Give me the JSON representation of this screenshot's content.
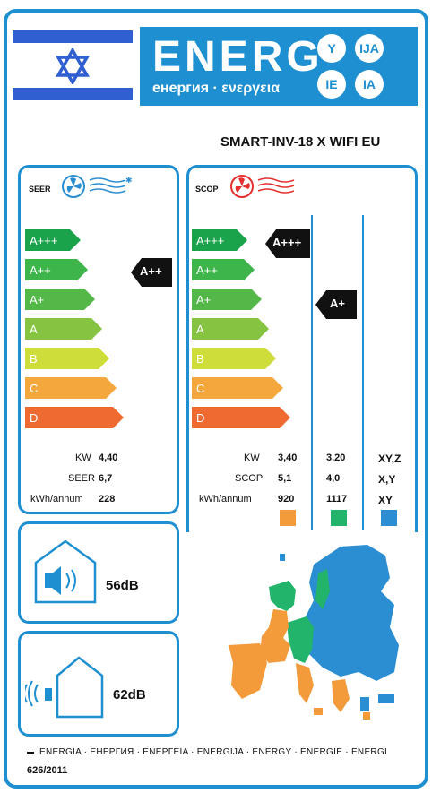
{
  "header": {
    "brand_word": "ENERG",
    "brand_subtitle": "енергия · ενεργεια",
    "suffixes": [
      "Y",
      "IJA",
      "IE",
      "IA"
    ]
  },
  "model": "SMART-INV-18 X WIFI EU",
  "colors": {
    "frame": "#1e8fd0",
    "class_a3": "#1aa34b",
    "class_a2": "#3db54a",
    "class_a1": "#53b848",
    "class_a": "#86c341",
    "class_b": "#cfdd3b",
    "class_c": "#f3a73c",
    "class_d": "#ee6a30",
    "zone_warmer": "#f39a3a",
    "zone_average": "#21b46a",
    "zone_colder": "#2b8ed2"
  },
  "cooling": {
    "title": "SEER",
    "icon": "fan-snowflake-icon",
    "classes": [
      "A+++",
      "A++",
      "A+",
      "A",
      "B",
      "C",
      "D"
    ],
    "rating": "A++",
    "rows": [
      {
        "label": "KW",
        "value": "4,40"
      },
      {
        "label": "SEER",
        "value": "6,7"
      },
      {
        "label": "kWh/annum",
        "value": "228"
      }
    ]
  },
  "heating": {
    "title": "SCOP",
    "icon": "fan-heat-icon",
    "classes": [
      "A+++",
      "A++",
      "A+",
      "A",
      "B",
      "C",
      "D"
    ],
    "rating_warmer": "A+++",
    "rating_average": "A+",
    "labels": [
      "KW",
      "SCOP",
      "kWh/annum"
    ],
    "warmer": [
      "3,40",
      "5,1",
      "920"
    ],
    "average": [
      "3,20",
      "4,0",
      "1117"
    ],
    "colder": [
      "XY,Z",
      "X,Y",
      "XY"
    ]
  },
  "noise": {
    "indoor": "56dB",
    "outdoor": "62dB"
  },
  "footer": {
    "languages": "ENERGIA · ЕНЕРГИЯ · ΕΝΕΡΓΕΙΑ · ENERGIJA · ENERGY · ENERGIE · ENERGI",
    "regulation": "626/2011"
  }
}
